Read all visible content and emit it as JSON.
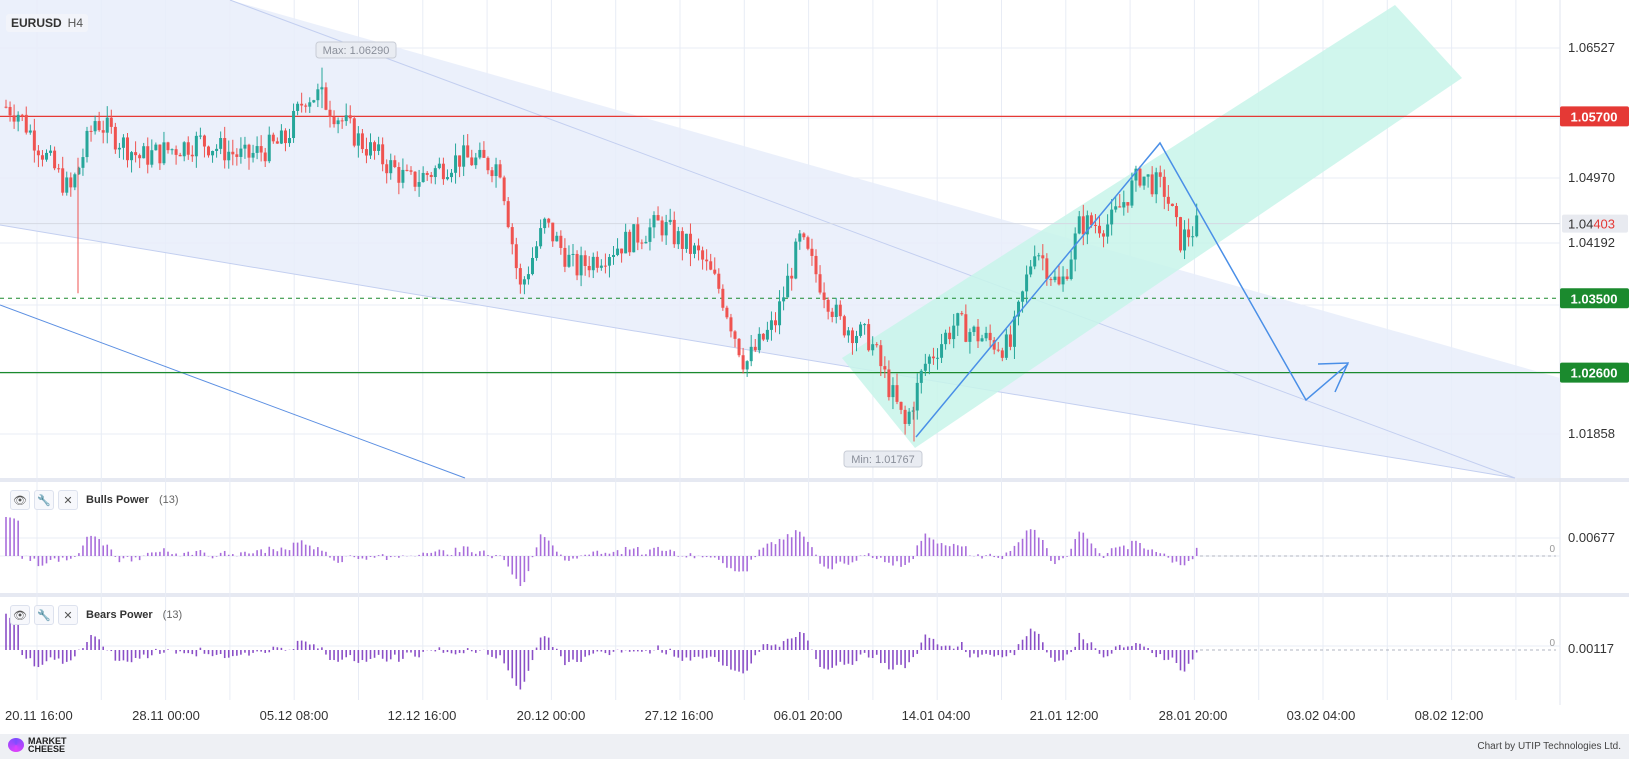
{
  "header": {
    "symbol": "EURUSD",
    "timeframe": "H4"
  },
  "price_axis": {
    "ticks": [
      "1.06527",
      "1.04970",
      "1.04192",
      "1.01858"
    ]
  },
  "levels": {
    "resistance": {
      "label": "1.05700",
      "color": "#e53935"
    },
    "current": {
      "label_a": "1.04",
      "label_b": "403",
      "color": "#e53935"
    },
    "support1": {
      "label": "1.03500",
      "color": "#1b8a2e"
    },
    "support2": {
      "label": "1.02600",
      "color": "#1b8a2e"
    }
  },
  "annotations": {
    "max": "Max: 1.06290",
    "min": "Min: 1.01767"
  },
  "time_axis": {
    "labels": [
      "20.11 16:00",
      "28.11 00:00",
      "05.12 08:00",
      "12.12 16:00",
      "20.12 00:00",
      "27.12 16:00",
      "06.01 20:00",
      "14.01 04:00",
      "21.01 12:00",
      "28.01 20:00",
      "03.02 04:00",
      "08.02 12:00"
    ]
  },
  "indicators": [
    {
      "name": "Bulls Power",
      "param": "(13)",
      "axis_label": "0.00677",
      "zero_label": "0",
      "color": "#a86ddb"
    },
    {
      "name": "Bears Power",
      "param": "(13)",
      "axis_label": "0.00117",
      "zero_label": "0",
      "color": "#8a4fc7"
    }
  ],
  "toolbar_icons": [
    "eye-icon",
    "wrench-icon",
    "close-icon"
  ],
  "footer": {
    "logo_line1": "MARKET",
    "logo_line2": "CHEESE",
    "credit": "Chart by UTIP Technologies Ltd."
  },
  "colors": {
    "bull": "#26a69a",
    "bear": "#ef5350",
    "channel_down": "#e8edfa",
    "channel_up": "#c8f4ea",
    "forecast": "#4a8fe7",
    "grid": "#e8ecf5"
  }
}
